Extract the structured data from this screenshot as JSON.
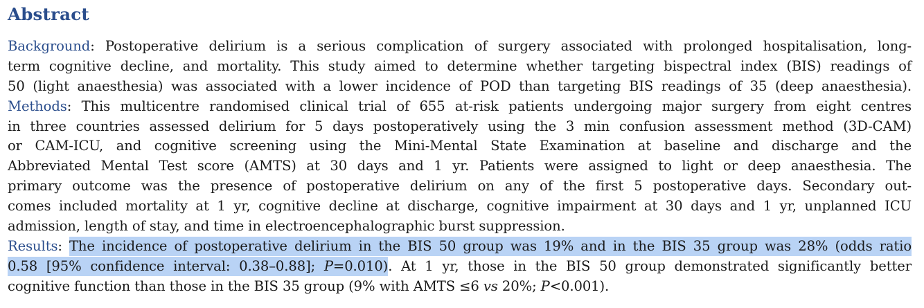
{
  "heading": "Abstract",
  "background": {
    "label": "Background",
    "line1": "Postoperative delirium is a serious complication of surgery associated with prolonged hospitalisation, long-",
    "line2": "term cognitive decline, and mortality. This study aimed to determine whether targeting bispectral index (BIS) readings of",
    "line3": "50 (light anaesthesia) was associated with a lower incidence of POD than targeting BIS readings of 35 (deep anaesthesia)."
  },
  "methods": {
    "label": "Methods",
    "line1": "This multicentre randomised clinical trial of 655 at-risk patients undergoing major surgery from eight centres",
    "line2": "in three countries assessed delirium for 5 days postoperatively using the 3 min confusion assessment method (3D-CAM)",
    "line3": "or CAM-ICU, and cognitive screening using the Mini-Mental State Examination at baseline and discharge and the",
    "line4": "Abbreviated Mental Test score (AMTS) at 30 days and 1 yr. Patients were assigned to light or deep anaesthesia. The",
    "line5": "primary outcome was the presence of postoperative delirium on any of the first 5 postoperative days. Secondary out-",
    "line6": "comes included mortality at 1 yr, cognitive decline at discharge, cognitive impairment at 30 days and 1 yr, unplanned ICU",
    "line7": "admission, length of stay, and time in electroencephalographic burst suppression."
  },
  "results": {
    "label": "Results",
    "highlight1": "The incidence of postoperative delirium in the BIS 50 group was 19% and in the BIS 35 group was 28% (odds ratio",
    "highlight2a": "0.58 [95% confidence interval: 0.38–0.88]; ",
    "p_symbol": "P",
    "highlight2b": "=0.010)",
    "line2_rest": ". At 1 yr, those in the BIS 50 group demonstrated significantly better",
    "line3a": "cognitive function than those in the BIS 35 group (9% with AMTS ≤6 ",
    "vs": "vs",
    "line3b": " 20%; ",
    "p_symbol2": "P",
    "line3c": "<0.001)."
  },
  "colors": {
    "label_blue": "#2a4d8c",
    "highlight": "#b9d3f5",
    "text": "#1a1a1a"
  }
}
